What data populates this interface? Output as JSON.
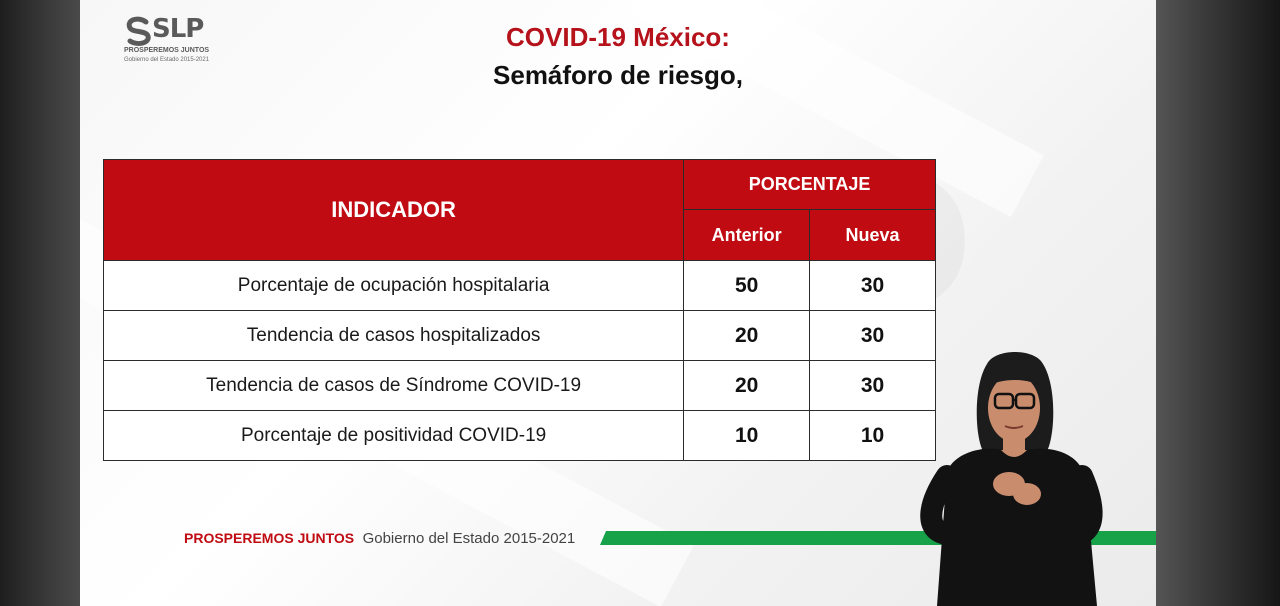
{
  "logo": {
    "name": "SLP",
    "tagline": "PROSPEREMOS JUNTOS",
    "subtitle": "Gobierno del Estado 2015-2021"
  },
  "title": {
    "line1": "COVID-19 México:",
    "line2": "Semáforo de riesgo,"
  },
  "table": {
    "header_indicator": "INDICADOR",
    "header_percentage": "PORCENTAJE",
    "header_previous": "Anterior",
    "header_new": "Nueva",
    "rows": [
      {
        "indicator": "Porcentaje de ocupación hospitalaria",
        "previous": "50",
        "new": "30"
      },
      {
        "indicator": "Tendencia de casos hospitalizados",
        "previous": "20",
        "new": "30"
      },
      {
        "indicator": "Tendencia de casos de Síndrome COVID-19",
        "previous": "20",
        "new": "30"
      },
      {
        "indicator": "Porcentaje de positividad COVID-19",
        "previous": "10",
        "new": "10"
      }
    ]
  },
  "footer": {
    "slogan": "PROSPEREMOS JUNTOS",
    "government": "Gobierno del Estado 2015-2021"
  },
  "colors": {
    "accent_red": "#c10b12",
    "accent_green": "#17a24a",
    "text_dark": "#111111"
  },
  "icons": {
    "logo": "slp-logo-icon"
  }
}
